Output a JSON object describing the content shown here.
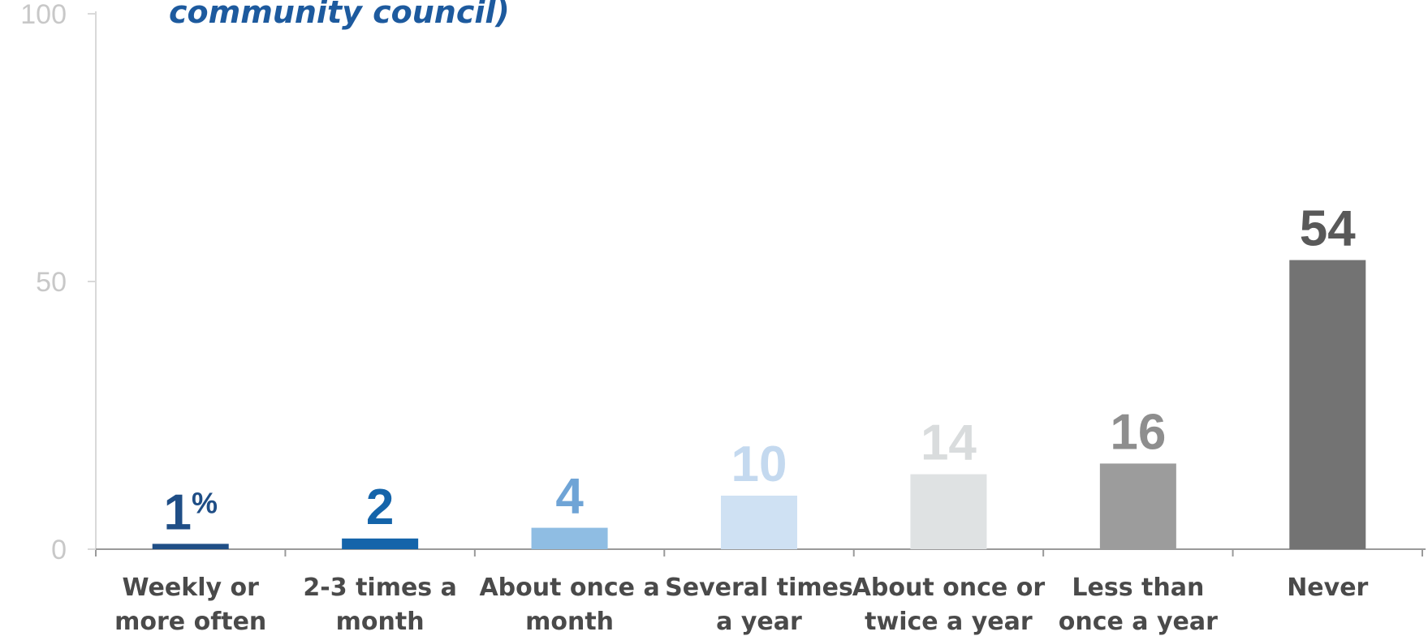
{
  "chart_data": {
    "type": "bar",
    "title": "community council)",
    "categories": [
      [
        "Weekly or",
        "more often"
      ],
      [
        "2-3 times a",
        "month"
      ],
      [
        "About once a",
        "month"
      ],
      [
        "Several times",
        "a year"
      ],
      [
        "About once or",
        "twice a year"
      ],
      [
        "Less than",
        "once a year"
      ],
      [
        "Never"
      ]
    ],
    "values": [
      1,
      2,
      4,
      10,
      14,
      16,
      54
    ],
    "data_labels": [
      "1",
      "2",
      "4",
      "10",
      "14",
      "16",
      "54"
    ],
    "unit_suffix": "%",
    "colors": [
      "#1f4e86",
      "#1464aa",
      "#8fbde3",
      "#cfe1f3",
      "#dfe2e3",
      "#9c9c9c",
      "#737373"
    ],
    "label_colors": [
      "#1f4e86",
      "#1464aa",
      "#6fa4d6",
      "#c4d9ef",
      "#d9dcdd",
      "#8e8e8e",
      "#595959"
    ],
    "yticks": [
      0,
      50,
      100
    ],
    "ylim": [
      0,
      100
    ],
    "grid": false,
    "legend": "none"
  }
}
